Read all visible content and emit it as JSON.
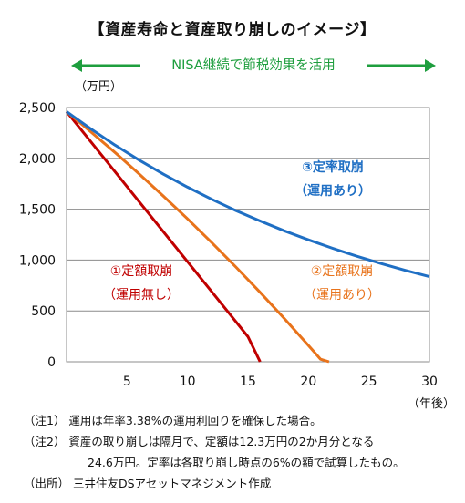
{
  "title": "【資産寿命と資産取り崩しのイメージ】",
  "nisa_label": "NISA継続で節税効果を活用",
  "y_unit": "（万円）",
  "x_unit": "（年後）",
  "colors": {
    "arrow": "#1e9e3e",
    "series1": "#c00000",
    "series2": "#e8731b",
    "series3": "#1f6fc4",
    "plot_bg": "#ffffff",
    "grid": "#8c8c8c"
  },
  "chart_data": {
    "type": "line",
    "title": "【資産寿命と資産取り崩しのイメージ】",
    "xlabel": "（年後）",
    "ylabel": "（万円）",
    "xlim": [
      0,
      30
    ],
    "ylim": [
      0,
      2500
    ],
    "x_ticks": [
      "5",
      "10",
      "15",
      "20",
      "25",
      "30"
    ],
    "y_ticks": [
      "0",
      "500",
      "1,000",
      "1,500",
      "2,000",
      "2,500"
    ],
    "grid": "horizontal",
    "series": [
      {
        "name": "①定額取崩（運用無し）",
        "label_lines": [
          "①定額取崩",
          "（運用無し）"
        ],
        "points": [
          [
            0,
            2460
          ],
          [
            5,
            1722
          ],
          [
            10,
            984
          ],
          [
            15,
            246
          ],
          [
            16,
            0
          ]
        ]
      },
      {
        "name": "②定額取崩（運用あり）",
        "label_lines": [
          "②定額取崩",
          "（運用あり）"
        ],
        "points": [
          [
            0,
            2460
          ],
          [
            2,
            2262
          ],
          [
            4,
            2058
          ],
          [
            6,
            1847
          ],
          [
            8,
            1630
          ],
          [
            10,
            1405
          ],
          [
            12,
            1172
          ],
          [
            14,
            932
          ],
          [
            16,
            683
          ],
          [
            18,
            426
          ],
          [
            20,
            160
          ],
          [
            21,
            25
          ],
          [
            21.7,
            0
          ]
        ]
      },
      {
        "name": "③定率取崩（運用あり）",
        "label_lines": [
          "③定率取崩",
          "（運用あり）"
        ],
        "points": [
          [
            0,
            2460
          ],
          [
            2,
            2290
          ],
          [
            4,
            2131
          ],
          [
            6,
            1983
          ],
          [
            8,
            1845
          ],
          [
            10,
            1717
          ],
          [
            12,
            1598
          ],
          [
            14,
            1487
          ],
          [
            16,
            1384
          ],
          [
            18,
            1288
          ],
          [
            20,
            1199
          ],
          [
            22,
            1116
          ],
          [
            24,
            1038
          ],
          [
            26,
            966
          ],
          [
            28,
            899
          ],
          [
            30,
            837
          ]
        ]
      }
    ]
  },
  "notes": [
    "（注1） 運用は年率3.38%の運用利回りを確保した場合。",
    "（注2） 資産の取り崩しは隔月で、定額は12.3万円の2か月分となる",
    "24.6万円。定率は各取り崩し時点の6%の額で試算したもの。",
    "（出所） 三井住友DSアセットマネジメント作成"
  ]
}
